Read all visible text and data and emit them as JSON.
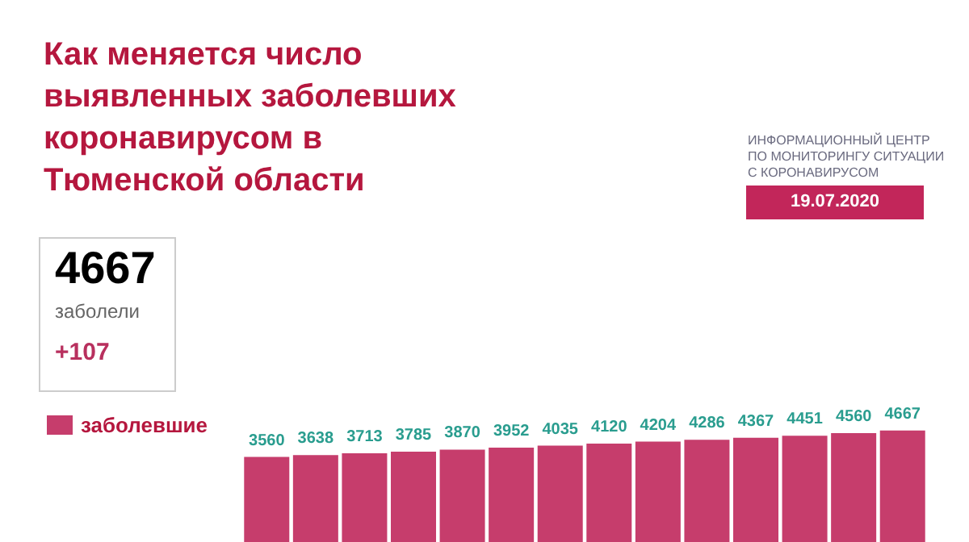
{
  "chart_data": {
    "type": "bar",
    "title": "Как меняется число выявленных заболевших коронавирусом в Тюменской области",
    "categories": [
      null,
      null,
      null,
      null,
      null,
      null,
      null,
      null,
      null,
      null,
      null,
      null,
      null,
      null
    ],
    "series": [
      {
        "name": "заболевшие",
        "color": "#c63d6c",
        "values": [
          3560,
          3638,
          3713,
          3785,
          3870,
          3952,
          4035,
          4120,
          4204,
          4286,
          4367,
          4451,
          4560,
          4667
        ]
      }
    ],
    "data_labels": true,
    "legend": "top left",
    "annotations": [
      "4667",
      "заболели",
      "+107",
      "ИНФОРМАЦИОННЫЙ ЦЕНТР\nПО МОНИТОРИНГУ СИТУАЦИИ\nС КОРОНАВИРУСОМ",
      "19.07.2020"
    ]
  }
}
